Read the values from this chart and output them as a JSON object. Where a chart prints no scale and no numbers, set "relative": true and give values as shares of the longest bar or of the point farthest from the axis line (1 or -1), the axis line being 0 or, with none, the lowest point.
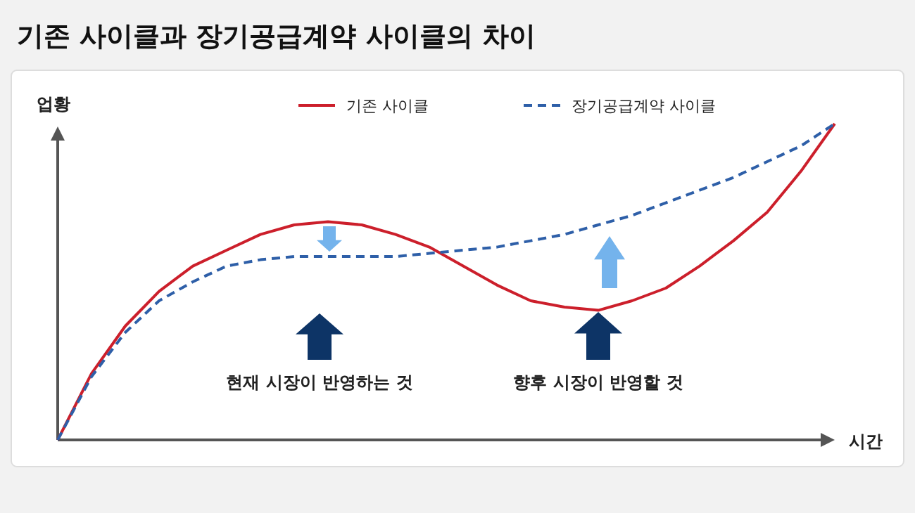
{
  "chart_data": {
    "type": "line",
    "title": "기존 사이클과 장기공급계약 사이클의 차이",
    "xlabel": "시간",
    "ylabel": "업황",
    "relative": true,
    "legend": "top",
    "categories": [
      null,
      null,
      null,
      null,
      null,
      null,
      null,
      null,
      null,
      null,
      null,
      null,
      null,
      null,
      null,
      null,
      null,
      null,
      null,
      null,
      null,
      null,
      null,
      null
    ],
    "series": [
      {
        "name": "기존 사이클",
        "color": "#cc1f2b",
        "line_style": "solid",
        "values": [
          0,
          0.21,
          0.36,
          0.47,
          0.55,
          0.6,
          0.65,
          0.68,
          0.69,
          0.68,
          0.65,
          0.61,
          0.55,
          0.49,
          0.44,
          0.42,
          0.41,
          0.44,
          0.48,
          0.55,
          0.63,
          0.72,
          0.85,
          1
        ]
      },
      {
        "name": "장기공급계약 사이클",
        "color": "#2e5fa8",
        "line_style": "dashed",
        "values": [
          0,
          0.2,
          0.34,
          0.44,
          0.5,
          0.55,
          0.57,
          0.58,
          0.58,
          0.58,
          0.58,
          0.59,
          0.6,
          0.61,
          0.63,
          0.65,
          0.68,
          0.71,
          0.75,
          0.79,
          0.83,
          0.88,
          0.93,
          1
        ]
      }
    ],
    "annotations": [
      "현재 시장이 반영하는 것",
      "향후 시장이 반영할 것"
    ]
  }
}
